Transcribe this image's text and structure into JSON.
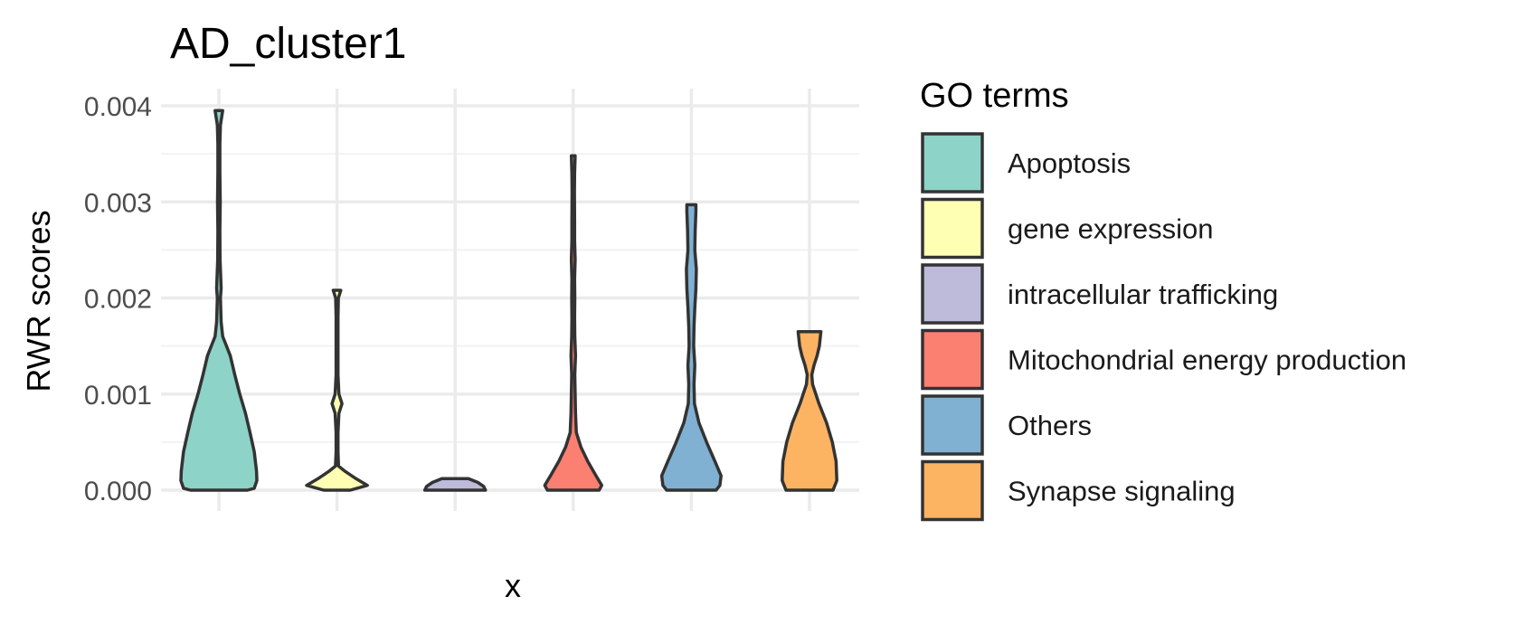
{
  "chart_data": {
    "type": "violin",
    "title": "AD_cluster1",
    "xlabel": "x",
    "ylabel": "RWR scores",
    "ylim": [
      0,
      0.004
    ],
    "yticks": [
      "0.000",
      "0.001",
      "0.002",
      "0.003",
      "0.004"
    ],
    "grid": true,
    "legend": {
      "title": "GO terms",
      "placement": "right"
    },
    "series": [
      {
        "name": "Apoptosis",
        "color": "#8DD3C7",
        "profile": [
          [
            0,
            0.75
          ],
          [
            2e-05,
            0.93
          ],
          [
            0.0001,
            1
          ],
          [
            0.0002,
            0.99
          ],
          [
            0.0004,
            0.93
          ],
          [
            0.0006,
            0.82
          ],
          [
            0.0008,
            0.7
          ],
          [
            0.001,
            0.55
          ],
          [
            0.0012,
            0.42
          ],
          [
            0.0014,
            0.3
          ],
          [
            0.0015,
            0.2
          ],
          [
            0.0016,
            0.1
          ],
          [
            0.00175,
            0.06
          ],
          [
            0.002,
            0.04
          ],
          [
            0.0021,
            0.06
          ],
          [
            0.0022,
            0.05
          ],
          [
            0.0024,
            0.03
          ],
          [
            0.0027,
            0.025
          ],
          [
            0.003,
            0.035
          ],
          [
            0.0033,
            0.025
          ],
          [
            0.0036,
            0.025
          ],
          [
            0.0038,
            0.04
          ],
          [
            0.00395,
            0.1
          ]
        ]
      },
      {
        "name": "gene expression",
        "color": "#FFFFB3",
        "profile": [
          [
            0,
            0.35
          ],
          [
            5e-05,
            0.8
          ],
          [
            0.00012,
            0.5
          ],
          [
            0.0002,
            0.2
          ],
          [
            0.00025,
            0.04
          ],
          [
            0.0004,
            0.025
          ],
          [
            0.0006,
            0.025
          ],
          [
            0.0008,
            0.05
          ],
          [
            0.0009,
            0.13
          ],
          [
            0.001,
            0.05
          ],
          [
            0.0012,
            0.025
          ],
          [
            0.0015,
            0.025
          ],
          [
            0.0018,
            0.025
          ],
          [
            0.002,
            0.035
          ],
          [
            0.00208,
            0.1
          ]
        ]
      },
      {
        "name": "intracellular trafficking",
        "color": "#BEBADA",
        "profile": [
          [
            0,
            0.8
          ],
          [
            4e-05,
            0.75
          ],
          [
            8e-05,
            0.6
          ],
          [
            0.00012,
            0.35
          ]
        ]
      },
      {
        "name": "Mitochondrial energy production",
        "color": "#FB8072",
        "profile": [
          [
            0,
            0.68
          ],
          [
            5e-05,
            0.75
          ],
          [
            0.00015,
            0.6
          ],
          [
            0.0003,
            0.38
          ],
          [
            0.00045,
            0.2
          ],
          [
            0.0006,
            0.08
          ],
          [
            0.0008,
            0.06
          ],
          [
            0.001,
            0.05
          ],
          [
            0.0012,
            0.04
          ],
          [
            0.0014,
            0.06
          ],
          [
            0.0016,
            0.04
          ],
          [
            0.0018,
            0.035
          ],
          [
            0.002,
            0.04
          ],
          [
            0.0022,
            0.035
          ],
          [
            0.0024,
            0.05
          ],
          [
            0.0026,
            0.035
          ],
          [
            0.0028,
            0.035
          ],
          [
            0.0031,
            0.03
          ],
          [
            0.0033,
            0.035
          ],
          [
            0.00348,
            0.05
          ]
        ]
      },
      {
        "name": "Others",
        "color": "#80B1D3",
        "profile": [
          [
            0,
            0.65
          ],
          [
            5e-05,
            0.75
          ],
          [
            0.00015,
            0.78
          ],
          [
            0.0003,
            0.62
          ],
          [
            0.0005,
            0.4
          ],
          [
            0.0007,
            0.2
          ],
          [
            0.0009,
            0.08
          ],
          [
            0.0011,
            0.07
          ],
          [
            0.0013,
            0.09
          ],
          [
            0.0015,
            0.06
          ],
          [
            0.0017,
            0.07
          ],
          [
            0.0019,
            0.09
          ],
          [
            0.0021,
            0.12
          ],
          [
            0.0023,
            0.13
          ],
          [
            0.0025,
            0.09
          ],
          [
            0.0027,
            0.1
          ],
          [
            0.0029,
            0.12
          ],
          [
            0.00297,
            0.12
          ]
        ]
      },
      {
        "name": "Synapse signaling",
        "color": "#FDB462",
        "profile": [
          [
            0,
            0.62
          ],
          [
            0.0001,
            0.72
          ],
          [
            0.0003,
            0.7
          ],
          [
            0.0005,
            0.6
          ],
          [
            0.0007,
            0.45
          ],
          [
            0.0009,
            0.25
          ],
          [
            0.0011,
            0.08
          ],
          [
            0.0012,
            0.06
          ],
          [
            0.0013,
            0.12
          ],
          [
            0.0014,
            0.2
          ],
          [
            0.0015,
            0.26
          ],
          [
            0.00165,
            0.3
          ]
        ]
      }
    ]
  }
}
